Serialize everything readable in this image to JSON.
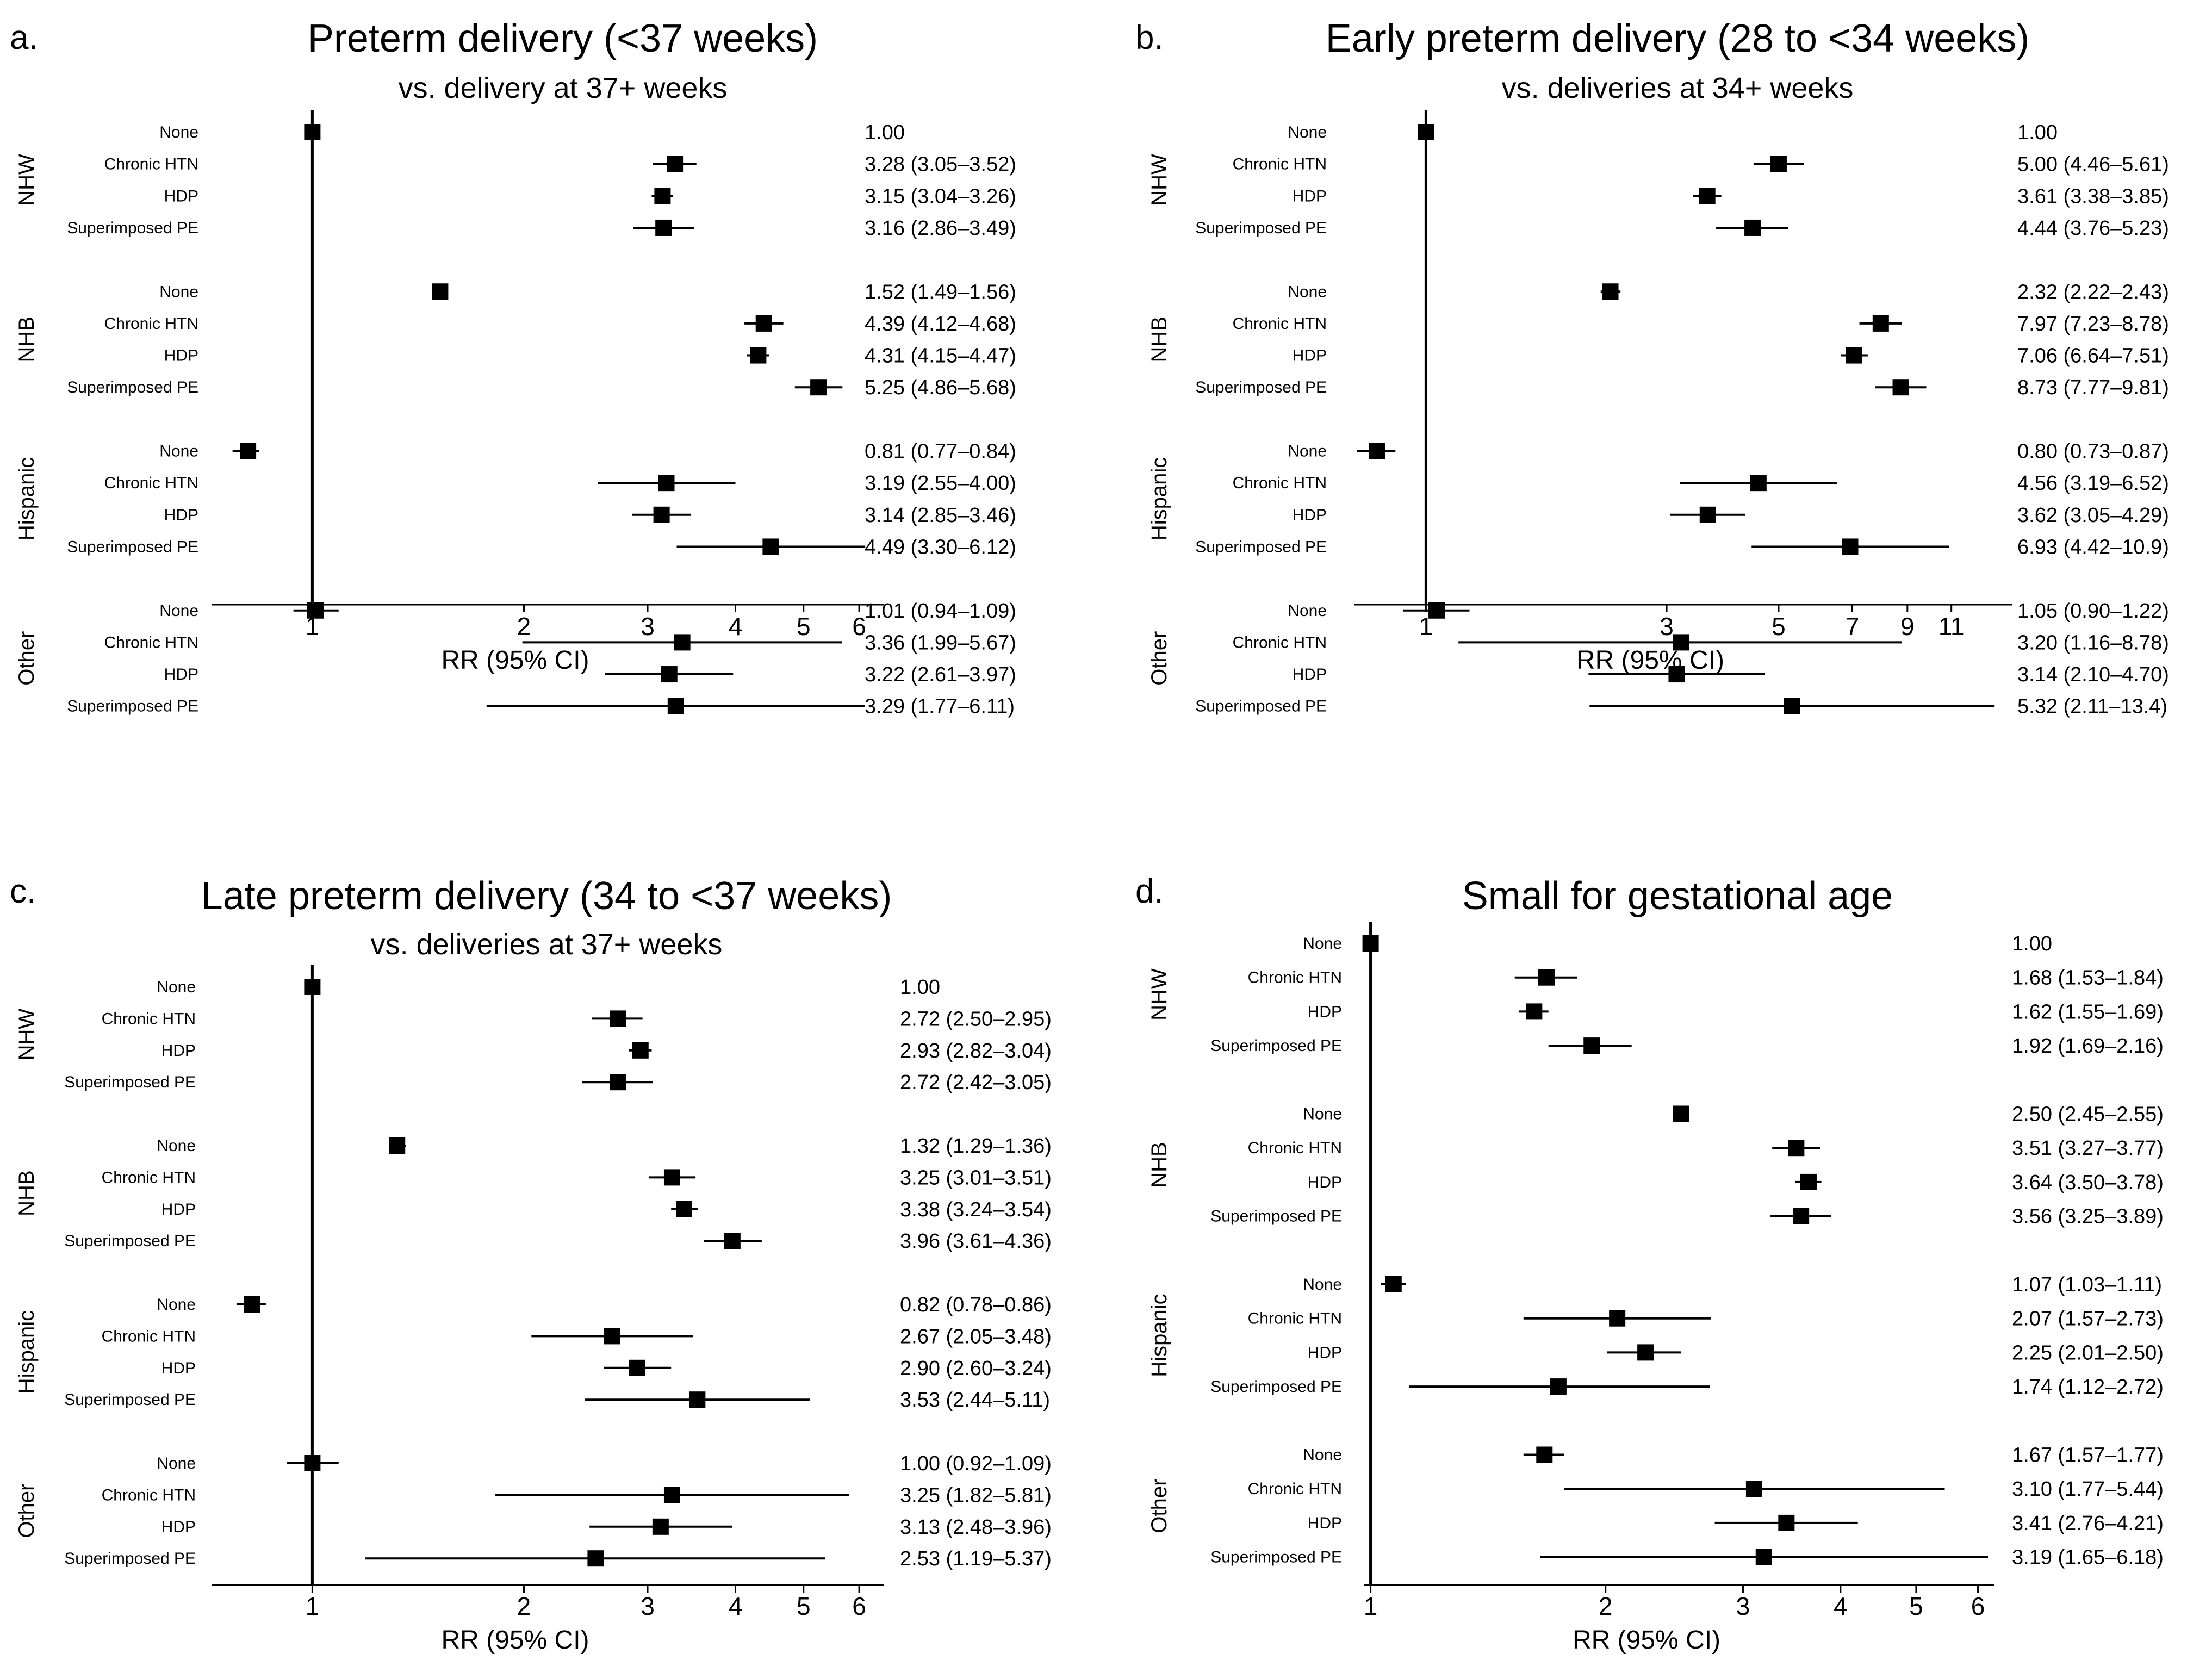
{
  "chart_data": [
    {
      "type": "forest",
      "panel_label": "a.",
      "title": "Preterm delivery (<37 weeks)",
      "subtitle": "vs. delivery at 37+ weeks",
      "xlabel": "RR (95% CI)",
      "x_scale": "log",
      "xlim": [
        0.72,
        6.5
      ],
      "xticks": [
        1,
        2,
        3,
        4,
        5,
        6
      ],
      "xtick_labels": [
        "1",
        "2",
        "3",
        "4",
        "5",
        "6"
      ],
      "reference_line": 1,
      "groups": [
        {
          "name": "NHW",
          "rows": [
            {
              "label": "None",
              "rr": 1.0,
              "lo": null,
              "hi": null,
              "text": "1.00"
            },
            {
              "label": "Chronic HTN",
              "rr": 3.28,
              "lo": 3.05,
              "hi": 3.52,
              "text": "3.28 (3.05–3.52)"
            },
            {
              "label": "HDP",
              "rr": 3.15,
              "lo": 3.04,
              "hi": 3.26,
              "text": "3.15 (3.04–3.26)"
            },
            {
              "label": "Superimposed PE",
              "rr": 3.16,
              "lo": 2.86,
              "hi": 3.49,
              "text": "3.16 (2.86–3.49)"
            }
          ]
        },
        {
          "name": "NHB",
          "rows": [
            {
              "label": "None",
              "rr": 1.52,
              "lo": 1.49,
              "hi": 1.56,
              "text": "1.52 (1.49–1.56)"
            },
            {
              "label": "Chronic HTN",
              "rr": 4.39,
              "lo": 4.12,
              "hi": 4.68,
              "text": "4.39 (4.12–4.68)"
            },
            {
              "label": "HDP",
              "rr": 4.31,
              "lo": 4.15,
              "hi": 4.47,
              "text": "4.31 (4.15–4.47)"
            },
            {
              "label": "Superimposed PE",
              "rr": 5.25,
              "lo": 4.86,
              "hi": 5.68,
              "text": "5.25 (4.86–5.68)"
            }
          ]
        },
        {
          "name": "Hispanic",
          "rows": [
            {
              "label": "None",
              "rr": 0.81,
              "lo": 0.77,
              "hi": 0.84,
              "text": "0.81 (0.77–0.84)"
            },
            {
              "label": "Chronic HTN",
              "rr": 3.19,
              "lo": 2.55,
              "hi": 4.0,
              "text": "3.19 (2.55–4.00)"
            },
            {
              "label": "HDP",
              "rr": 3.14,
              "lo": 2.85,
              "hi": 3.46,
              "text": "3.14 (2.85–3.46)"
            },
            {
              "label": "Superimposed PE",
              "rr": 4.49,
              "lo": 3.3,
              "hi": 6.12,
              "text": "4.49 (3.30–6.12)"
            }
          ]
        },
        {
          "name": "Other",
          "rows": [
            {
              "label": "None",
              "rr": 1.01,
              "lo": 0.94,
              "hi": 1.09,
              "text": "1.01 (0.94–1.09)"
            },
            {
              "label": "Chronic HTN",
              "rr": 3.36,
              "lo": 1.99,
              "hi": 5.67,
              "text": "3.36 (1.99–5.67)"
            },
            {
              "label": "HDP",
              "rr": 3.22,
              "lo": 2.61,
              "hi": 3.97,
              "text": "3.22 (2.61–3.97)"
            },
            {
              "label": "Superimposed PE",
              "rr": 3.29,
              "lo": 1.77,
              "hi": 6.11,
              "text": "3.29 (1.77–6.11)"
            }
          ]
        }
      ]
    },
    {
      "type": "forest",
      "panel_label": "b.",
      "title": "Early preterm delivery (28 to <34 weeks)",
      "subtitle": "vs. deliveries at 34+ weeks",
      "xlabel": "RR (95% CI)",
      "x_scale": "log",
      "xlim": [
        0.72,
        14.5
      ],
      "xticks": [
        1,
        3,
        5,
        7,
        9,
        11
      ],
      "xtick_labels": [
        "1",
        "3",
        "5",
        "7",
        "9",
        "11"
      ],
      "reference_line": 1,
      "groups": [
        {
          "name": "NHW",
          "rows": [
            {
              "label": "None",
              "rr": 1.0,
              "lo": null,
              "hi": null,
              "text": "1.00"
            },
            {
              "label": "Chronic HTN",
              "rr": 5.0,
              "lo": 4.46,
              "hi": 5.61,
              "text": "5.00 (4.46–5.61)"
            },
            {
              "label": "HDP",
              "rr": 3.61,
              "lo": 3.38,
              "hi": 3.85,
              "text": "3.61 (3.38–3.85)"
            },
            {
              "label": "Superimposed PE",
              "rr": 4.44,
              "lo": 3.76,
              "hi": 5.23,
              "text": "4.44 (3.76–5.23)"
            }
          ]
        },
        {
          "name": "NHB",
          "rows": [
            {
              "label": "None",
              "rr": 2.32,
              "lo": 2.22,
              "hi": 2.43,
              "text": "2.32 (2.22–2.43)"
            },
            {
              "label": "Chronic HTN",
              "rr": 7.97,
              "lo": 7.23,
              "hi": 8.78,
              "text": "7.97 (7.23–8.78)"
            },
            {
              "label": "HDP",
              "rr": 7.06,
              "lo": 6.64,
              "hi": 7.51,
              "text": "7.06 (6.64–7.51)"
            },
            {
              "label": "Superimposed PE",
              "rr": 8.73,
              "lo": 7.77,
              "hi": 9.81,
              "text": "8.73 (7.77–9.81)"
            }
          ]
        },
        {
          "name": "Hispanic",
          "rows": [
            {
              "label": "None",
              "rr": 0.8,
              "lo": 0.73,
              "hi": 0.87,
              "text": "0.80 (0.73–0.87)"
            },
            {
              "label": "Chronic HTN",
              "rr": 4.56,
              "lo": 3.19,
              "hi": 6.52,
              "text": "4.56 (3.19–6.52)"
            },
            {
              "label": "HDP",
              "rr": 3.62,
              "lo": 3.05,
              "hi": 4.29,
              "text": "3.62 (3.05–4.29)"
            },
            {
              "label": "Superimposed PE",
              "rr": 6.93,
              "lo": 4.42,
              "hi": 10.9,
              "text": "6.93 (4.42–10.9)"
            }
          ]
        },
        {
          "name": "Other",
          "rows": [
            {
              "label": "None",
              "rr": 1.05,
              "lo": 0.9,
              "hi": 1.22,
              "text": "1.05 (0.90–1.22)"
            },
            {
              "label": "Chronic HTN",
              "rr": 3.2,
              "lo": 1.16,
              "hi": 8.78,
              "text": "3.20 (1.16–8.78)"
            },
            {
              "label": "HDP",
              "rr": 3.14,
              "lo": 2.1,
              "hi": 4.7,
              "text": "3.14 (2.10–4.70)"
            },
            {
              "label": "Superimposed PE",
              "rr": 5.32,
              "lo": 2.11,
              "hi": 13.4,
              "text": "5.32 (2.11–13.4)"
            }
          ]
        }
      ]
    },
    {
      "type": "forest",
      "panel_label": "c.",
      "title": "Late preterm delivery (34 to <37 weeks)",
      "subtitle": "vs. deliveries at 37+ weeks",
      "xlabel": "RR (95% CI)",
      "x_scale": "log",
      "xlim": [
        0.72,
        6.5
      ],
      "xticks": [
        1,
        2,
        3,
        4,
        5,
        6
      ],
      "xtick_labels": [
        "1",
        "2",
        "3",
        "4",
        "5",
        "6"
      ],
      "reference_line": 1,
      "groups": [
        {
          "name": "NHW",
          "rows": [
            {
              "label": "None",
              "rr": 1.0,
              "lo": null,
              "hi": null,
              "text": "1.00"
            },
            {
              "label": "Chronic HTN",
              "rr": 2.72,
              "lo": 2.5,
              "hi": 2.95,
              "text": "2.72 (2.50–2.95)"
            },
            {
              "label": "HDP",
              "rr": 2.93,
              "lo": 2.82,
              "hi": 3.04,
              "text": "2.93 (2.82–3.04)"
            },
            {
              "label": "Superimposed PE",
              "rr": 2.72,
              "lo": 2.42,
              "hi": 3.05,
              "text": "2.72 (2.42–3.05)"
            }
          ]
        },
        {
          "name": "NHB",
          "rows": [
            {
              "label": "None",
              "rr": 1.32,
              "lo": 1.29,
              "hi": 1.36,
              "text": "1.32 (1.29–1.36)"
            },
            {
              "label": "Chronic HTN",
              "rr": 3.25,
              "lo": 3.01,
              "hi": 3.51,
              "text": "3.25 (3.01–3.51)"
            },
            {
              "label": "HDP",
              "rr": 3.38,
              "lo": 3.24,
              "hi": 3.54,
              "text": "3.38 (3.24–3.54)"
            },
            {
              "label": "Superimposed PE",
              "rr": 3.96,
              "lo": 3.61,
              "hi": 4.36,
              "text": "3.96 (3.61–4.36)"
            }
          ]
        },
        {
          "name": "Hispanic",
          "rows": [
            {
              "label": "None",
              "rr": 0.82,
              "lo": 0.78,
              "hi": 0.86,
              "text": "0.82 (0.78–0.86)"
            },
            {
              "label": "Chronic HTN",
              "rr": 2.67,
              "lo": 2.05,
              "hi": 3.48,
              "text": "2.67 (2.05–3.48)"
            },
            {
              "label": "HDP",
              "rr": 2.9,
              "lo": 2.6,
              "hi": 3.24,
              "text": "2.90 (2.60–3.24)"
            },
            {
              "label": "Superimposed PE",
              "rr": 3.53,
              "lo": 2.44,
              "hi": 5.11,
              "text": "3.53 (2.44–5.11)"
            }
          ]
        },
        {
          "name": "Other",
          "rows": [
            {
              "label": "None",
              "rr": 1.0,
              "lo": 0.92,
              "hi": 1.09,
              "text": "1.00 (0.92–1.09)"
            },
            {
              "label": "Chronic HTN",
              "rr": 3.25,
              "lo": 1.82,
              "hi": 5.81,
              "text": "3.25 (1.82–5.81)"
            },
            {
              "label": "HDP",
              "rr": 3.13,
              "lo": 2.48,
              "hi": 3.96,
              "text": "3.13 (2.48–3.96)"
            },
            {
              "label": "Superimposed PE",
              "rr": 2.53,
              "lo": 1.19,
              "hi": 5.37,
              "text": "2.53 (1.19–5.37)"
            }
          ]
        }
      ]
    },
    {
      "type": "forest",
      "panel_label": "d.",
      "title": "Small for gestational age",
      "subtitle": "",
      "xlabel": "RR (95% CI)",
      "x_scale": "log",
      "xlim": [
        0.98,
        6.3
      ],
      "xticks": [
        1,
        2,
        3,
        4,
        5,
        6
      ],
      "xtick_labels": [
        "1",
        "2",
        "3",
        "4",
        "5",
        "6"
      ],
      "reference_line": 1,
      "groups": [
        {
          "name": "NHW",
          "rows": [
            {
              "label": "None",
              "rr": 1.0,
              "lo": null,
              "hi": null,
              "text": "1.00"
            },
            {
              "label": "Chronic HTN",
              "rr": 1.68,
              "lo": 1.53,
              "hi": 1.84,
              "text": "1.68 (1.53–1.84)"
            },
            {
              "label": "HDP",
              "rr": 1.62,
              "lo": 1.55,
              "hi": 1.69,
              "text": "1.62 (1.55–1.69)"
            },
            {
              "label": "Superimposed PE",
              "rr": 1.92,
              "lo": 1.69,
              "hi": 2.16,
              "text": "1.92 (1.69–2.16)"
            }
          ]
        },
        {
          "name": "NHB",
          "rows": [
            {
              "label": "None",
              "rr": 2.5,
              "lo": 2.45,
              "hi": 2.55,
              "text": "2.50 (2.45–2.55)"
            },
            {
              "label": "Chronic HTN",
              "rr": 3.51,
              "lo": 3.27,
              "hi": 3.77,
              "text": "3.51 (3.27–3.77)"
            },
            {
              "label": "HDP",
              "rr": 3.64,
              "lo": 3.5,
              "hi": 3.78,
              "text": "3.64 (3.50–3.78)"
            },
            {
              "label": "Superimposed PE",
              "rr": 3.56,
              "lo": 3.25,
              "hi": 3.89,
              "text": "3.56 (3.25–3.89)"
            }
          ]
        },
        {
          "name": "Hispanic",
          "rows": [
            {
              "label": "None",
              "rr": 1.07,
              "lo": 1.03,
              "hi": 1.11,
              "text": "1.07 (1.03–1.11)"
            },
            {
              "label": "Chronic HTN",
              "rr": 2.07,
              "lo": 1.57,
              "hi": 2.73,
              "text": "2.07 (1.57–2.73)"
            },
            {
              "label": "HDP",
              "rr": 2.25,
              "lo": 2.01,
              "hi": 2.5,
              "text": "2.25 (2.01–2.50)"
            },
            {
              "label": "Superimposed PE",
              "rr": 1.74,
              "lo": 1.12,
              "hi": 2.72,
              "text": "1.74 (1.12–2.72)"
            }
          ]
        },
        {
          "name": "Other",
          "rows": [
            {
              "label": "None",
              "rr": 1.67,
              "lo": 1.57,
              "hi": 1.77,
              "text": "1.67 (1.57–1.77)"
            },
            {
              "label": "Chronic HTN",
              "rr": 3.1,
              "lo": 1.77,
              "hi": 5.44,
              "text": "3.10 (1.77–5.44)"
            },
            {
              "label": "HDP",
              "rr": 3.41,
              "lo": 2.76,
              "hi": 4.21,
              "text": "3.41 (2.76–4.21)"
            },
            {
              "label": "Superimposed PE",
              "rr": 3.19,
              "lo": 1.65,
              "hi": 6.18,
              "text": "3.19 (1.65–6.18)"
            }
          ]
        }
      ]
    }
  ]
}
